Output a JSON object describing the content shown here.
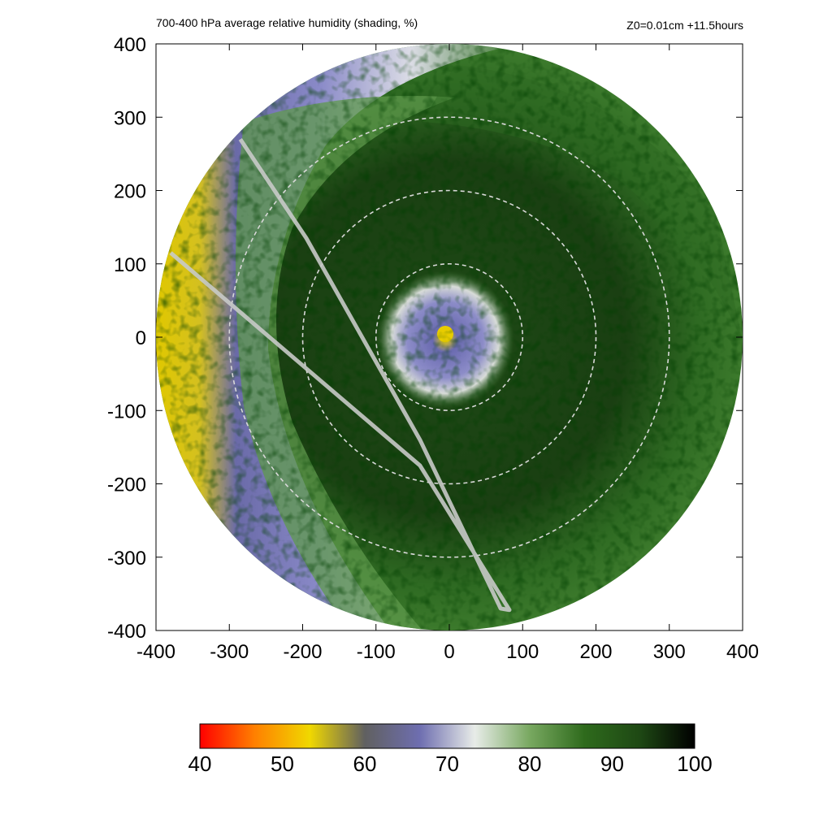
{
  "chart_data": {
    "type": "heatmap",
    "title": "700-400 hPa average relative humidity (shading, %)",
    "run_label": "Z0=0.01cm  +11.5hours",
    "xlim": [
      -400,
      400
    ],
    "ylim": [
      -400,
      400
    ],
    "x_ticks": [
      "-400",
      "-300",
      "-200",
      "-100",
      "0",
      "100",
      "200",
      "300",
      "400"
    ],
    "y_ticks": [
      "400",
      "300",
      "200",
      "100",
      "0",
      "-100",
      "-200",
      "-300",
      "-400"
    ],
    "grid": false,
    "domain_radius": 400,
    "range_rings_radius": [
      100,
      200,
      300
    ],
    "colorbar": {
      "orientation": "horizontal",
      "placement": "bottom",
      "range": [
        40,
        100
      ],
      "ticks": [
        "40",
        "50",
        "60",
        "70",
        "80",
        "90",
        "100"
      ],
      "colors": [
        "#ff0000",
        "#ff8000",
        "#f0d800",
        "#606060",
        "#6e6eb0",
        "#e8ece8",
        "#78a860",
        "#2e6a1c",
        "#1e4814",
        "#000000"
      ]
    },
    "features": {
      "inner_core_rh_min": 50,
      "inner_core_location": [
        -5,
        5
      ],
      "eyewall_rh": 85,
      "far_west_dry_band_rh": 52,
      "track_line": [
        [
          -380,
          115
        ],
        [
          -40,
          -175
        ],
        [
          82,
          -372
        ],
        [
          70,
          -370
        ],
        [
          -40,
          -140
        ],
        [
          -195,
          135
        ],
        [
          -285,
          270
        ]
      ]
    }
  }
}
